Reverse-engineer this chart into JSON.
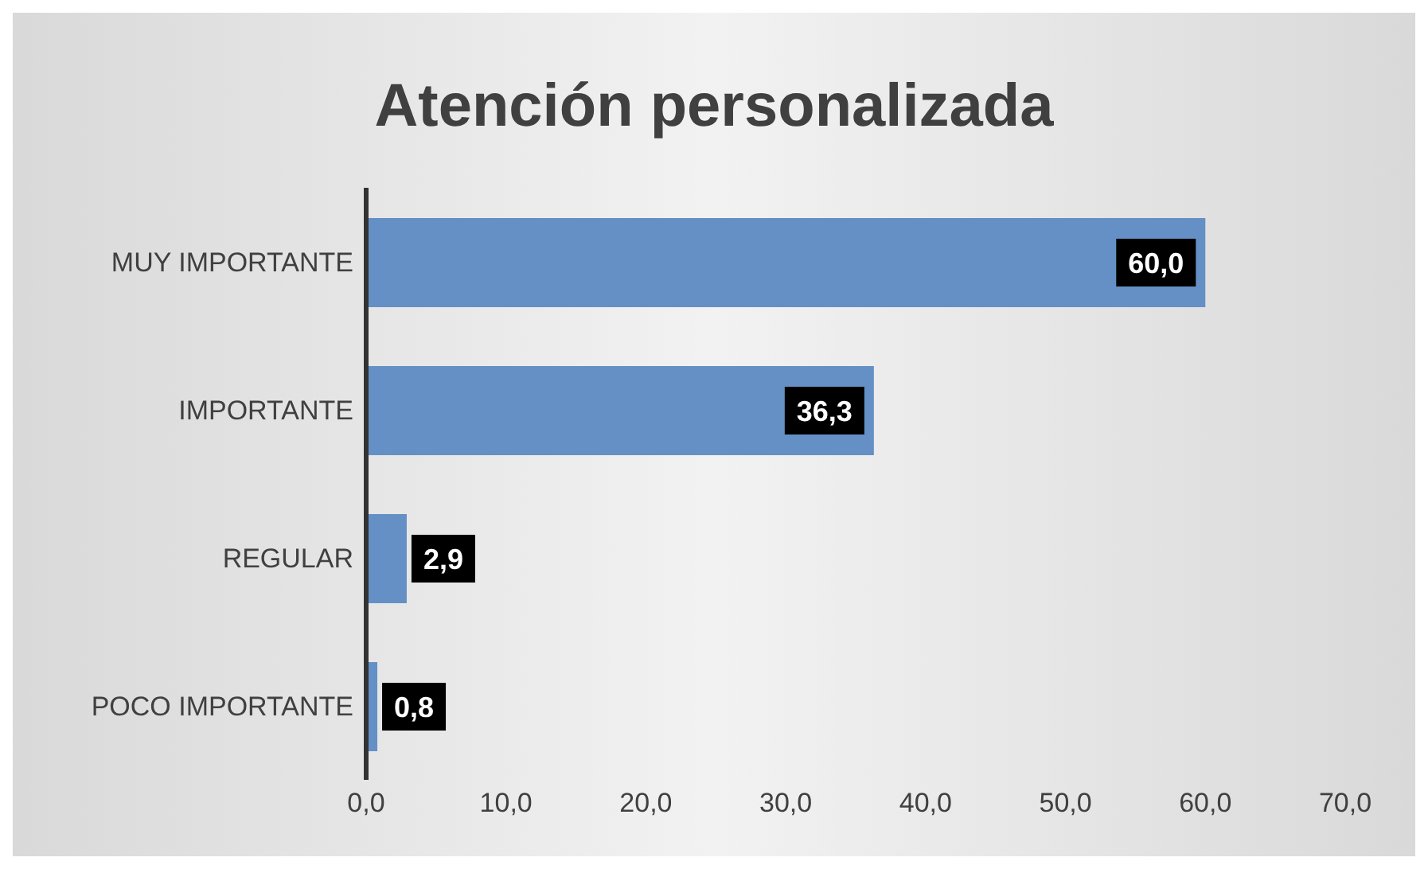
{
  "chart_data": {
    "type": "bar",
    "orientation": "horizontal",
    "title": "Atención personalizada",
    "categories": [
      "MUY IMPORTANTE",
      "IMPORTANTE",
      "REGULAR",
      "POCO IMPORTANTE"
    ],
    "values": [
      60.0,
      36.3,
      2.9,
      0.8
    ],
    "value_labels": [
      "60,0",
      "36,3",
      "2,9",
      "0,8"
    ],
    "color": "#6490c6",
    "xlim": [
      0,
      70
    ],
    "xticks": [
      {
        "value": 0,
        "label": "0,0"
      },
      {
        "value": 10,
        "label": "10,0"
      },
      {
        "value": 20,
        "label": "20,0"
      },
      {
        "value": 30,
        "label": "30,0"
      },
      {
        "value": 40,
        "label": "40,0"
      },
      {
        "value": 50,
        "label": "50,0"
      },
      {
        "value": 60,
        "label": "60,0"
      },
      {
        "value": 70,
        "label": "70,0"
      }
    ],
    "grid": false,
    "legend": false
  }
}
